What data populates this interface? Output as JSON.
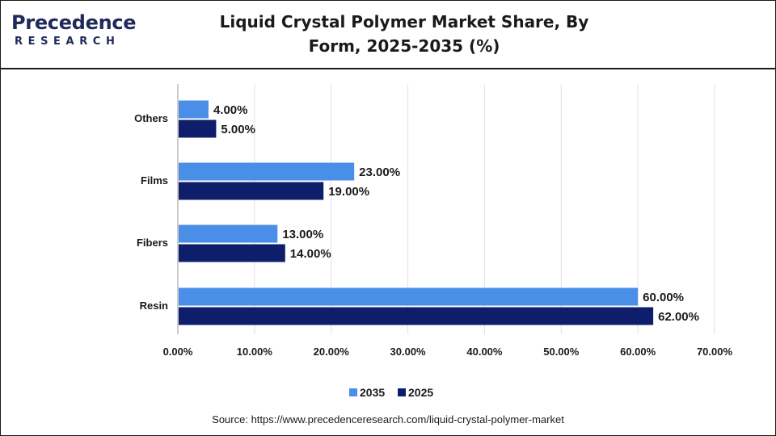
{
  "brand": {
    "name": "Precedence",
    "sub": "RESEARCH"
  },
  "title": "Liquid Crystal Polymer Market Share, By Form, 2025-2035 (%)",
  "source": "Source: https://www.precedenceresearch.com/liquid-crystal-polymer-market",
  "colors": {
    "s2035": "#4a8fe7",
    "s2025": "#0e1e6b",
    "grid": "#e2e2e2",
    "axis": "#999999"
  },
  "chart_data": {
    "type": "bar",
    "orientation": "horizontal",
    "categories": [
      "Others",
      "Films",
      "Fibers",
      "Resin"
    ],
    "series": [
      {
        "name": "2035",
        "values": [
          4.0,
          23.0,
          13.0,
          60.0
        ],
        "labels": [
          "4.00%",
          "23.00%",
          "13.00%",
          "60.00%"
        ]
      },
      {
        "name": "2025",
        "values": [
          5.0,
          19.0,
          14.0,
          62.0
        ],
        "labels": [
          "5.00%",
          "19.00%",
          "14.00%",
          "62.00%"
        ]
      }
    ],
    "xlim": [
      0,
      70
    ],
    "xticks": [
      0,
      10,
      20,
      30,
      40,
      50,
      60,
      70
    ],
    "xtick_labels": [
      "0.00%",
      "10.00%",
      "20.00%",
      "30.00%",
      "40.00%",
      "50.00%",
      "60.00%",
      "70.00%"
    ],
    "grid": true,
    "legend": "bottom-center"
  }
}
